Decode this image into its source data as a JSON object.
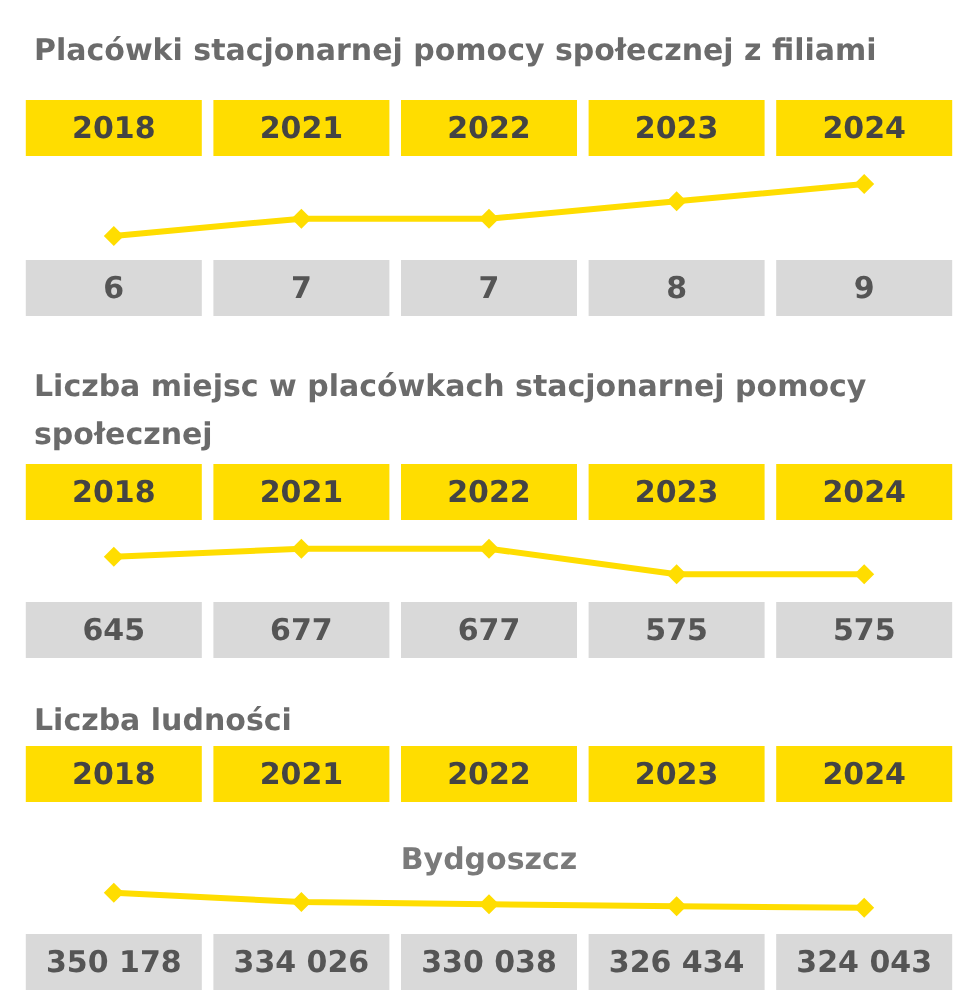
{
  "chart_data": [
    {
      "type": "line",
      "title": "Placówki stacjonarnej pomocy społecznej z filiami",
      "categories": [
        "2018",
        "2021",
        "2022",
        "2023",
        "2024"
      ],
      "series": [
        {
          "color": "#ffdd00",
          "values": [
            6,
            7,
            7,
            8,
            9
          ]
        }
      ],
      "data_labels": true,
      "marker": "diamond",
      "line_style": "solid",
      "tick_labels": "x"
    },
    {
      "type": "line",
      "title": "Liczba miejsc w placówkach stacjonarnej pomocy społecznej",
      "categories": [
        "2018",
        "2021",
        "2022",
        "2023",
        "2024"
      ],
      "series": [
        {
          "color": "#ffdd00",
          "values": [
            645,
            677,
            677,
            575,
            575
          ]
        }
      ],
      "data_labels": true,
      "marker": "diamond",
      "line_style": "solid",
      "tick_labels": "x"
    },
    {
      "type": "line",
      "title": "Liczba ludności",
      "subtitle": "Bydgoszcz",
      "categories": [
        "2018",
        "2021",
        "2022",
        "2023",
        "2024"
      ],
      "series": [
        {
          "color": "#ffdd00",
          "values": [
            350178,
            334026,
            330038,
            326434,
            324043
          ],
          "value_labels": [
            "350 178",
            "334 026",
            "330 038",
            "326 434",
            "324 043"
          ]
        }
      ],
      "marker": "diamond",
      "line_style": "solid",
      "tick_labels": "x"
    }
  ]
}
